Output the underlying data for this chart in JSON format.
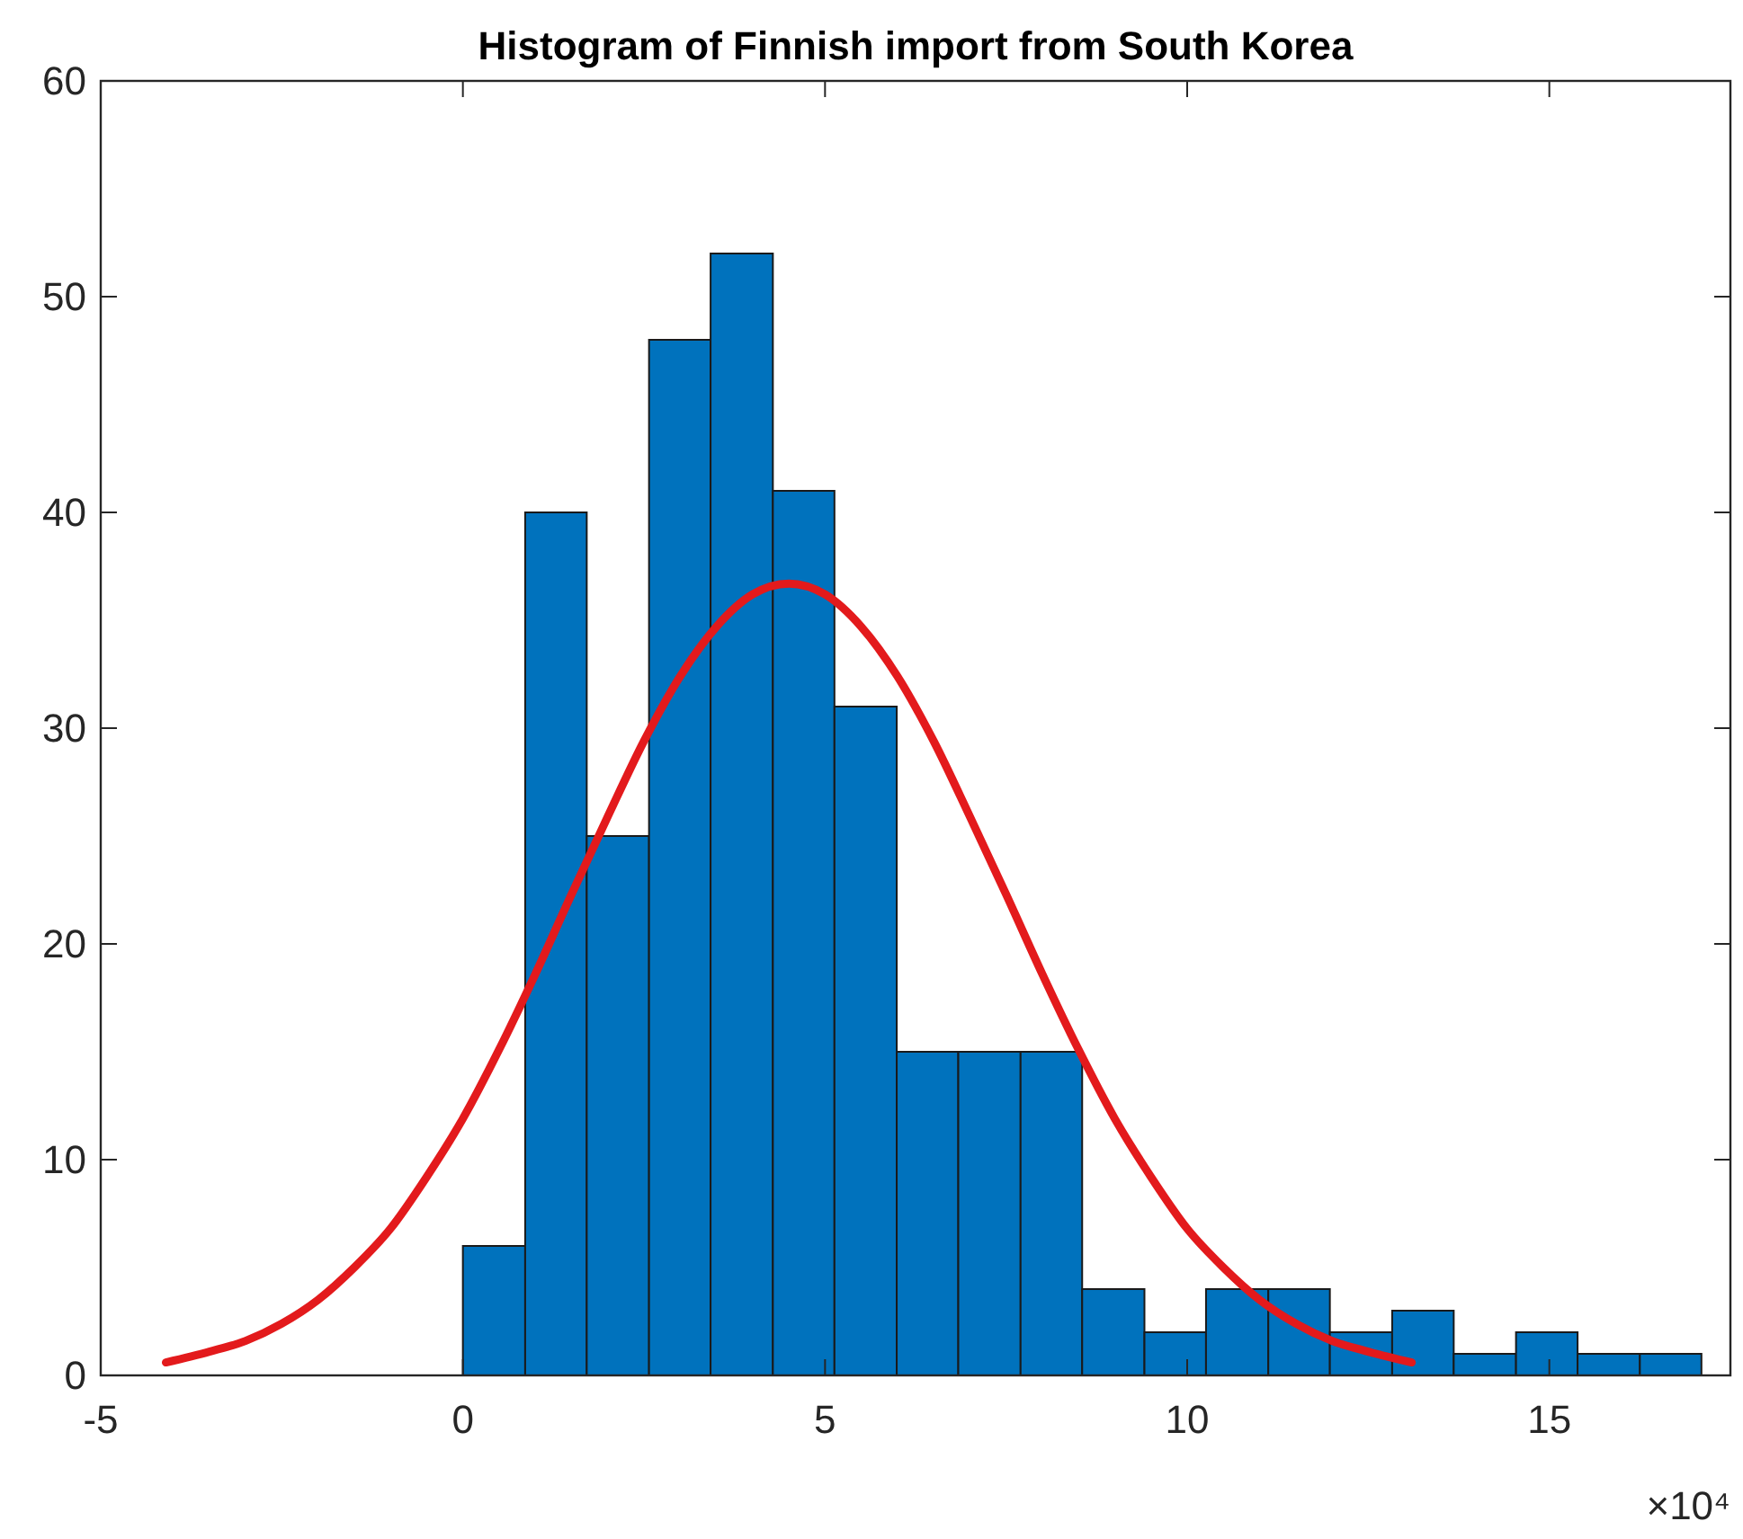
{
  "chart_data": {
    "type": "histogram",
    "title": "Histogram of Finnish import from South Korea",
    "xlim": [
      -5,
      17.5
    ],
    "xticks": [
      -5,
      0,
      5,
      10,
      15
    ],
    "ylim": [
      0,
      60
    ],
    "yticks": [
      0,
      10,
      20,
      30,
      40,
      50,
      60
    ],
    "grid": false,
    "annotations": [
      "×10⁴"
    ],
    "series": [
      {
        "color": "#0072bd",
        "bins": [
          0,
          0.86,
          1.71,
          2.57,
          3.42,
          4.28,
          5.13,
          5.99,
          6.84,
          7.7,
          8.55,
          9.41,
          10.26,
          11.12,
          11.97,
          12.83,
          13.68,
          14.54,
          15.39,
          16.25,
          17.1
        ],
        "values": [
          6,
          40,
          25,
          48,
          52,
          41,
          31,
          15,
          15,
          15,
          4,
          2,
          4,
          4,
          2,
          3,
          1,
          2,
          1,
          1
        ]
      },
      {
        "type": "line",
        "color": "#e31a1c",
        "marker": "none",
        "line_style": "solid",
        "x": [
          -4.1,
          -3.5,
          -3,
          -2.5,
          -2,
          -1.5,
          -1,
          -0.5,
          0,
          0.5,
          1,
          1.5,
          2,
          2.5,
          3,
          3.5,
          4,
          4.5,
          5,
          5.5,
          6,
          6.5,
          7,
          7.5,
          8,
          8.5,
          9,
          9.5,
          10,
          10.5,
          11,
          11.5,
          12,
          12.5,
          13.1
        ],
        "values": [
          0.6,
          1.1,
          1.6,
          2.4,
          3.5,
          5,
          6.8,
          9.2,
          11.9,
          15.1,
          18.6,
          22.3,
          25.9,
          29.4,
          32.4,
          34.7,
          36.2,
          36.7,
          36.2,
          34.7,
          32.4,
          29.4,
          25.9,
          22.3,
          18.6,
          15.1,
          11.9,
          9.2,
          6.8,
          5,
          3.5,
          2.4,
          1.6,
          1.1,
          0.6
        ]
      }
    ]
  }
}
